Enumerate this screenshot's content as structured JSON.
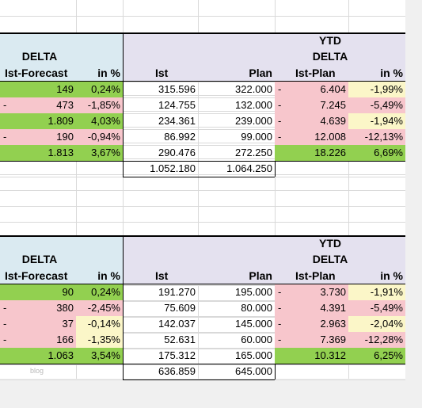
{
  "headers": {
    "ytd": "YTD",
    "delta": "DELTA",
    "ist_forecast": "Ist-Forecast",
    "in_pct": "in %",
    "ist": "Ist",
    "plan": "Plan",
    "ist_plan": "Ist-Plan"
  },
  "table1": {
    "rows": [
      {
        "neg_a": "",
        "a": "149",
        "a_pct": "0,24%",
        "ist": "315.596",
        "plan": "322.000",
        "neg_b": "-",
        "b": "6.404",
        "b_pct": "-1,99%"
      },
      {
        "neg_a": "-",
        "a": "473",
        "a_pct": "-1,85%",
        "ist": "124.755",
        "plan": "132.000",
        "neg_b": "-",
        "b": "7.245",
        "b_pct": "-5,49%"
      },
      {
        "neg_a": "",
        "a": "1.809",
        "a_pct": "4,03%",
        "ist": "234.361",
        "plan": "239.000",
        "neg_b": "-",
        "b": "4.639",
        "b_pct": "-1,94%"
      },
      {
        "neg_a": "-",
        "a": "190",
        "a_pct": "-0,94%",
        "ist": "86.992",
        "plan": "99.000",
        "neg_b": "-",
        "b": "12.008",
        "b_pct": "-12,13%"
      },
      {
        "neg_a": "",
        "a": "1.813",
        "a_pct": "3,67%",
        "ist": "290.476",
        "plan": "272.250",
        "neg_b": "",
        "b": "18.226",
        "b_pct": "6,69%"
      }
    ],
    "total": {
      "ist": "1.052.180",
      "plan": "1.064.250"
    }
  },
  "table2": {
    "rows": [
      {
        "neg_a": "",
        "a": "90",
        "a_pct": "0,24%",
        "ist": "191.270",
        "plan": "195.000",
        "neg_b": "-",
        "b": "3.730",
        "b_pct": "-1,91%"
      },
      {
        "neg_a": "-",
        "a": "380",
        "a_pct": "-2,45%",
        "ist": "75.609",
        "plan": "80.000",
        "neg_b": "-",
        "b": "4.391",
        "b_pct": "-5,49%"
      },
      {
        "neg_a": "-",
        "a": "37",
        "a_pct": "-0,14%",
        "ist": "142.037",
        "plan": "145.000",
        "neg_b": "-",
        "b": "2.963",
        "b_pct": "-2,04%"
      },
      {
        "neg_a": "-",
        "a": "166",
        "a_pct": "-1,35%",
        "ist": "52.631",
        "plan": "60.000",
        "neg_b": "-",
        "b": "7.369",
        "b_pct": "-12,28%"
      },
      {
        "neg_a": "",
        "a": "1.063",
        "a_pct": "3,54%",
        "ist": "175.312",
        "plan": "165.000",
        "neg_b": "",
        "b": "10.312",
        "b_pct": "6,25%"
      }
    ],
    "total": {
      "ist": "636.859",
      "plan": "645.000"
    }
  },
  "watermark": "blog",
  "colors": {
    "positive": "#92d050",
    "negative": "#f7c6cc",
    "neutral_pct": "#fbf6c8",
    "header_left": "#daeaf1",
    "header_right": "#e4e1ef"
  }
}
